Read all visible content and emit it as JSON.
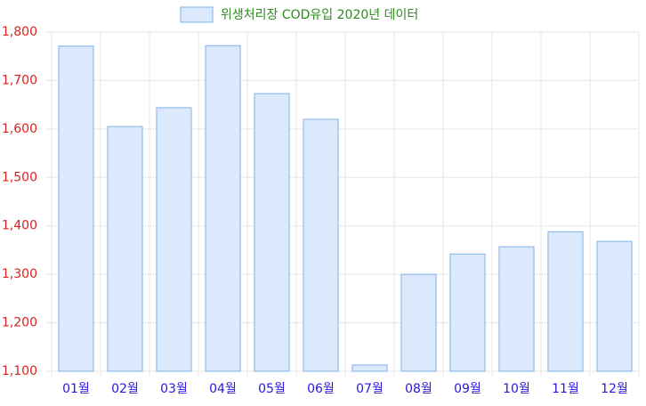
{
  "chart_data": {
    "type": "bar",
    "series": [
      {
        "name": "위생처리장 COD유입 2020년 데이터",
        "color": "#dce8fb",
        "border_color": "#7fb1e6",
        "values": [
          1771,
          1605,
          1644,
          1772,
          1673,
          1620,
          1113,
          1300,
          1342,
          1357,
          1388,
          1368
        ]
      }
    ],
    "categories": [
      "01월",
      "02월",
      "03월",
      "04월",
      "05월",
      "06월",
      "07월",
      "08월",
      "09월",
      "10월",
      "11월",
      "12월"
    ],
    "ylim": [
      1100,
      1800
    ],
    "yticks": [
      {
        "value": 1100,
        "label": "1,100"
      },
      {
        "value": 1200,
        "label": "1,200"
      },
      {
        "value": 1300,
        "label": "1,300"
      },
      {
        "value": 1400,
        "label": "1,400"
      },
      {
        "value": 1500,
        "label": "1,500"
      },
      {
        "value": 1600,
        "label": "1,600"
      },
      {
        "value": 1700,
        "label": "1,700"
      },
      {
        "value": 1800,
        "label": "1,800"
      }
    ],
    "grid": true,
    "legend": "top",
    "ytick_color": "#e0201e",
    "xtick_color": "#2a16e0",
    "legend_text_color": "#2e8b1e"
  }
}
